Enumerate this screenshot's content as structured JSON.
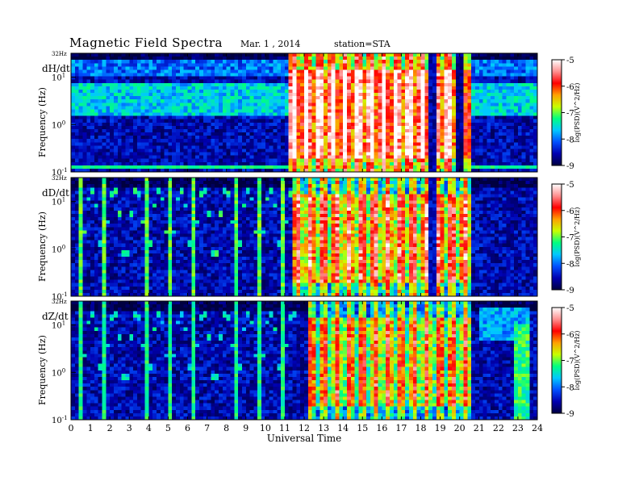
{
  "title": "Magnetic Field Spectra",
  "date": "Mar. 1 , 2014",
  "station": "station=STA",
  "colors": {
    "background": "#ffffff",
    "axis": "#000000",
    "colormap": [
      "#000040",
      "#0000b0",
      "#0050ff",
      "#00c8ff",
      "#00ff80",
      "#c8ff00",
      "#ffa000",
      "#ff0000",
      "#ff9090",
      "#ffffff"
    ]
  },
  "chart_data": {
    "type": "heatmap",
    "x": {
      "label": "Universal Time",
      "range": [
        0,
        24
      ],
      "ticks": [
        0,
        1,
        2,
        3,
        4,
        5,
        6,
        7,
        8,
        9,
        10,
        11,
        12,
        13,
        14,
        15,
        16,
        17,
        18,
        19,
        20,
        21,
        22,
        23,
        24
      ],
      "tick_labels": [
        "0",
        "1",
        "2",
        "3",
        "4",
        "5",
        "6",
        "7",
        "8",
        "9",
        "10",
        "11",
        "12",
        "13",
        "14",
        "15",
        "16",
        "17",
        "18",
        "19",
        "20",
        "21",
        "22",
        "23",
        "24"
      ]
    },
    "y": {
      "label": "Frequency  (Hz)",
      "scale": "log",
      "range": [
        0.1,
        32
      ],
      "top_label": "32Hz",
      "decade_labels": [
        {
          "value": 10,
          "base": "10",
          "exp": "1"
        },
        {
          "value": 1,
          "base": "10",
          "exp": "0"
        },
        {
          "value": 0.1,
          "base": "10",
          "exp": "-1"
        }
      ]
    },
    "colorbar": {
      "label": "log(PSD)(V^2/Hz)",
      "range": [
        -9,
        -5
      ],
      "ticks": [
        -5,
        -6,
        -7,
        -8,
        -9
      ],
      "tick_labels": [
        "-5",
        "-6",
        "-7",
        "-8",
        "-9"
      ]
    },
    "panels": [
      {
        "component": "dH/dt",
        "features": [
          {
            "kind": "band",
            "fmin": 1.5,
            "fmax": 8,
            "level": -7.6
          },
          {
            "kind": "band",
            "fmin": 10,
            "fmax": 25,
            "level": -8.0
          },
          {
            "kind": "line",
            "f": 0.13,
            "level": -7.4
          },
          {
            "kind": "storm",
            "t_start": 11.3,
            "t_end": 20.7,
            "level": -5.3
          },
          {
            "kind": "gap",
            "t_start": 18.3,
            "t_end": 18.8,
            "level": -8.6
          },
          {
            "kind": "gap",
            "t_start": 19.8,
            "t_end": 20.2,
            "level": -8.7
          }
        ]
      },
      {
        "component": "dD/dt",
        "features": [
          {
            "kind": "line",
            "f": 4.0,
            "level": -7.3
          },
          {
            "kind": "arcs",
            "t_start": 0.5,
            "t_end": 11.5,
            "level": -7.6
          },
          {
            "kind": "storm",
            "t_start": 11.5,
            "t_end": 20.7,
            "level": -6.0
          },
          {
            "kind": "gap",
            "t_start": 18.3,
            "t_end": 18.8,
            "level": -8.5
          }
        ]
      },
      {
        "component": "dZ/dt",
        "features": [
          {
            "kind": "line",
            "f": 4.0,
            "level": -7.0
          },
          {
            "kind": "arcs",
            "t_start": 0.5,
            "t_end": 11.5,
            "level": -7.8
          },
          {
            "kind": "storm",
            "t_start": 12.2,
            "t_end": 20.7,
            "level": -6.3
          },
          {
            "kind": "patch",
            "t_start": 21.0,
            "t_end": 23.5,
            "fmin": 5,
            "fmax": 25,
            "level": -7.8
          },
          {
            "kind": "patch",
            "t_start": 22.8,
            "t_end": 23.6,
            "fmin": 0.1,
            "fmax": 10,
            "level": -7.2
          }
        ]
      }
    ]
  }
}
